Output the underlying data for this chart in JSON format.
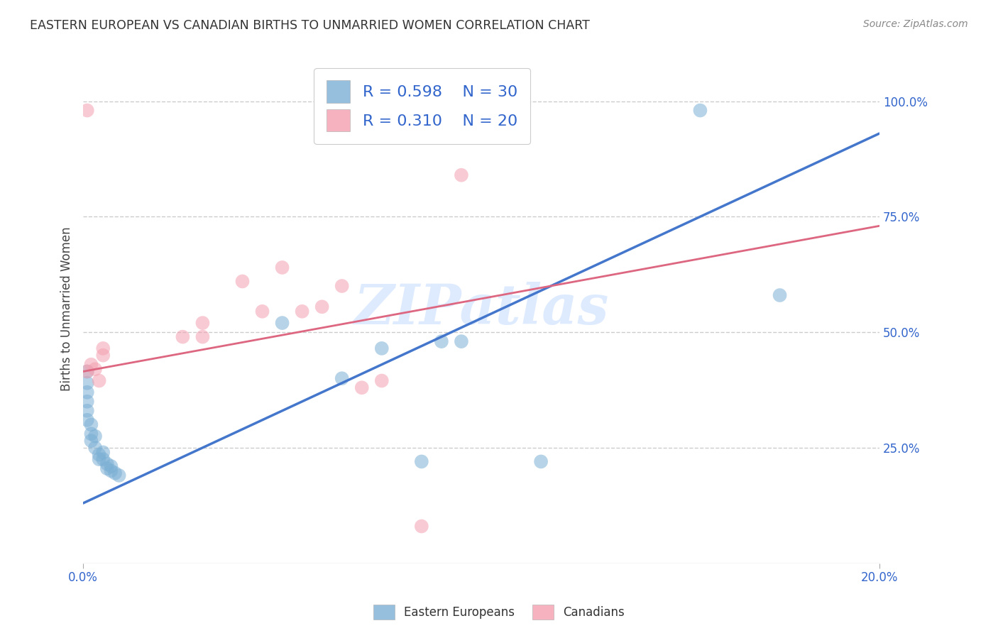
{
  "title": "EASTERN EUROPEAN VS CANADIAN BIRTHS TO UNMARRIED WOMEN CORRELATION CHART",
  "source": "Source: ZipAtlas.com",
  "ylabel": "Births to Unmarried Women",
  "ylabel_right_ticks": [
    "100.0%",
    "75.0%",
    "50.0%",
    "25.0%"
  ],
  "ylabel_right_values": [
    1.0,
    0.75,
    0.5,
    0.25
  ],
  "xmin": 0.0,
  "xmax": 0.2,
  "ymin": 0.0,
  "ymax": 1.1,
  "legend_blue_R": "R = 0.598",
  "legend_blue_N": "N = 30",
  "legend_pink_R": "R = 0.310",
  "legend_pink_N": "N = 20",
  "blue_color": "#7BAFD4",
  "pink_color": "#F4A0B0",
  "blue_scatter": [
    [
      0.001,
      0.415
    ],
    [
      0.001,
      0.39
    ],
    [
      0.001,
      0.37
    ],
    [
      0.001,
      0.35
    ],
    [
      0.001,
      0.33
    ],
    [
      0.001,
      0.31
    ],
    [
      0.002,
      0.3
    ],
    [
      0.002,
      0.28
    ],
    [
      0.002,
      0.265
    ],
    [
      0.003,
      0.275
    ],
    [
      0.003,
      0.25
    ],
    [
      0.004,
      0.235
    ],
    [
      0.004,
      0.225
    ],
    [
      0.005,
      0.24
    ],
    [
      0.005,
      0.225
    ],
    [
      0.006,
      0.215
    ],
    [
      0.006,
      0.205
    ],
    [
      0.007,
      0.21
    ],
    [
      0.007,
      0.2
    ],
    [
      0.008,
      0.195
    ],
    [
      0.009,
      0.19
    ],
    [
      0.05,
      0.52
    ],
    [
      0.065,
      0.4
    ],
    [
      0.075,
      0.465
    ],
    [
      0.085,
      0.22
    ],
    [
      0.09,
      0.48
    ],
    [
      0.095,
      0.48
    ],
    [
      0.115,
      0.22
    ],
    [
      0.155,
      0.98
    ],
    [
      0.175,
      0.58
    ]
  ],
  "pink_scatter": [
    [
      0.001,
      0.98
    ],
    [
      0.001,
      0.415
    ],
    [
      0.002,
      0.43
    ],
    [
      0.003,
      0.42
    ],
    [
      0.004,
      0.395
    ],
    [
      0.005,
      0.45
    ],
    [
      0.005,
      0.465
    ],
    [
      0.025,
      0.49
    ],
    [
      0.03,
      0.49
    ],
    [
      0.03,
      0.52
    ],
    [
      0.04,
      0.61
    ],
    [
      0.045,
      0.545
    ],
    [
      0.05,
      0.64
    ],
    [
      0.055,
      0.545
    ],
    [
      0.06,
      0.555
    ],
    [
      0.065,
      0.6
    ],
    [
      0.07,
      0.38
    ],
    [
      0.075,
      0.395
    ],
    [
      0.085,
      0.08
    ],
    [
      0.095,
      0.84
    ]
  ],
  "blue_line_x": [
    0.0,
    0.2
  ],
  "blue_line_y": [
    0.13,
    0.93
  ],
  "pink_line_x": [
    0.0,
    0.2
  ],
  "pink_line_y": [
    0.415,
    0.73
  ],
  "watermark": "ZIPatlas",
  "background_color": "#ffffff",
  "grid_color": "#cccccc"
}
